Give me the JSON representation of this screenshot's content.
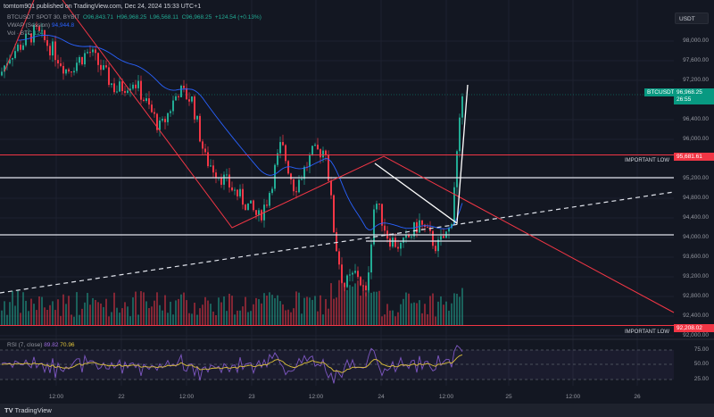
{
  "header": {
    "published": "tomtom901 published on TradingView.com, Dec 24, 2024 15:33 UTC+1"
  },
  "legend": {
    "symbol": "BTCUSDT SPOT 30, BYBIT",
    "o": "O96,843.71",
    "h": "H96,968.25",
    "l": "L96,568.11",
    "c": "C96,968.25",
    "change": "+124.54 (+0.13%)",
    "vwap_label": "VWAP (Session)",
    "vwap_value": "94,944.8",
    "vol_label": "Vol · BTC",
    "vol_value": "124",
    "rsi_label": "RSI (7, close)",
    "rsi_value": "89.82",
    "rsi_ma": "70.96"
  },
  "axis": {
    "currency": "USDT",
    "ticks": [
      "98,000.00",
      "97,600.00",
      "97,200.00",
      "96,400.00",
      "96,000.00",
      "95,200.00",
      "94,800.00",
      "94,400.00",
      "94,000.00",
      "93,600.00",
      "93,200.00",
      "92,800.00",
      "92,400.00",
      "92,000.00"
    ],
    "rsi_ticks": [
      "75.00",
      "50.00",
      "25.00"
    ]
  },
  "price_tag": {
    "symbol": "BTCUSDT",
    "price": "96,968.25",
    "countdown": "26:55"
  },
  "levels": [
    {
      "price": "95,681.61",
      "label": "IMPORTANT LOW"
    },
    {
      "price": "92,208.02",
      "label": "IMPORTANT LOW"
    }
  ],
  "time_labels": [
    "12:00",
    "22",
    "12:00",
    "23",
    "12:00",
    "24",
    "12:00",
    "25",
    "12:00",
    "26"
  ],
  "footer": {
    "brand": "TradingView"
  },
  "colors": {
    "up": "#22ab94",
    "down": "#f23645",
    "vwap": "#2962ff",
    "rsi": "#7e57c2",
    "rsi_ma": "#e0c33a"
  },
  "chart_data": {
    "type": "candlestick",
    "interval": "30m",
    "path": [
      [
        0,
        97300
      ],
      [
        10,
        97700
      ],
      [
        40,
        98200
      ],
      [
        60,
        97800
      ],
      [
        75,
        97400
      ],
      [
        100,
        97800
      ],
      [
        130,
        97000
      ],
      [
        150,
        97200
      ],
      [
        180,
        96200
      ],
      [
        200,
        97000
      ],
      [
        215,
        96800
      ],
      [
        230,
        95600
      ],
      [
        260,
        95000
      ],
      [
        290,
        94400
      ],
      [
        300,
        94800
      ],
      [
        315,
        95900
      ],
      [
        330,
        95000
      ],
      [
        350,
        95700
      ],
      [
        365,
        95800
      ],
      [
        375,
        94000
      ],
      [
        385,
        93000
      ],
      [
        400,
        93300
      ],
      [
        410,
        92800
      ],
      [
        420,
        94800
      ],
      [
        435,
        94000
      ],
      [
        450,
        93800
      ],
      [
        470,
        94300
      ],
      [
        490,
        93800
      ],
      [
        505,
        94200
      ],
      [
        510,
        95300
      ],
      [
        515,
        96300
      ],
      [
        520,
        96968
      ]
    ]
  }
}
